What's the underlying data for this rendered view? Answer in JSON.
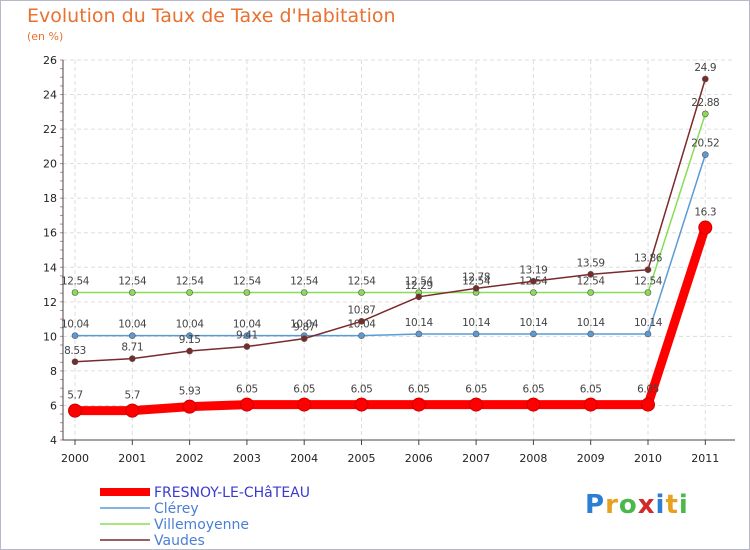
{
  "chart_data": {
    "type": "line",
    "title": "Evolution du Taux de Taxe d'Habitation",
    "subtitle": "(en %)",
    "x": [
      "2000",
      "2001",
      "2002",
      "2003",
      "2004",
      "2005",
      "2006",
      "2007",
      "2008",
      "2009",
      "2010",
      "2011"
    ],
    "ylim": [
      4,
      26
    ],
    "yticks": [
      "4",
      "6",
      "8",
      "10",
      "12",
      "14",
      "16",
      "18",
      "20",
      "22",
      "24",
      "26"
    ],
    "grid": true,
    "legend_position": "bottom-left",
    "series": [
      {
        "name": "FRESNOY-LE-CHâTEAU",
        "color": "#ff0000",
        "values": [
          5.7,
          5.7,
          5.93,
          6.05,
          6.05,
          6.05,
          6.05,
          6.05,
          6.05,
          6.05,
          6.05,
          16.3
        ],
        "labels": [
          "5.7",
          "5.7",
          "5.93",
          "6.05",
          "6.05",
          "6.05",
          "6.05",
          "6.05",
          "6.05",
          "6.05",
          "6.05",
          "16.3"
        ]
      },
      {
        "name": "Clérey",
        "color": "#5b9bd5",
        "values": [
          10.04,
          10.04,
          10.04,
          10.04,
          10.04,
          10.04,
          10.14,
          10.14,
          10.14,
          10.14,
          10.14,
          20.52
        ],
        "labels": [
          "10.04",
          "10.04",
          "10.04",
          "10.04",
          "10.04",
          "10.04",
          "10.14",
          "10.14",
          "10.14",
          "10.14",
          "10.14",
          "20.52"
        ]
      },
      {
        "name": "Villemoyenne",
        "color": "#88dd55",
        "values": [
          12.54,
          12.54,
          12.54,
          12.54,
          12.54,
          12.54,
          12.54,
          12.54,
          12.54,
          12.54,
          12.54,
          22.88
        ],
        "labels": [
          "12.54",
          "12.54",
          "12.54",
          "12.54",
          "12.54",
          "12.54",
          "12.54",
          "12.54",
          "12.54",
          "12.54",
          "12.54",
          "22.88"
        ]
      },
      {
        "name": "Vaudes",
        "color": "#7a2a2a",
        "values": [
          8.53,
          8.71,
          9.15,
          9.41,
          9.87,
          10.87,
          12.29,
          12.78,
          13.19,
          13.59,
          13.86,
          24.9
        ],
        "labels": [
          "8.53",
          "8.71",
          "9.15",
          "9.41",
          "9.87",
          "10.87",
          "12.29",
          "12.78",
          "13.19",
          "13.59",
          "13.86",
          "24.9"
        ]
      }
    ]
  },
  "logo": {
    "letters": [
      "P",
      "r",
      "o",
      "x",
      "i",
      "t",
      "i"
    ],
    "colors": [
      "#2a7fd4",
      "#e8a020",
      "#4cb84c",
      "#d02a2a",
      "#2a7fd4",
      "#e8a020",
      "#4cb84c"
    ]
  }
}
